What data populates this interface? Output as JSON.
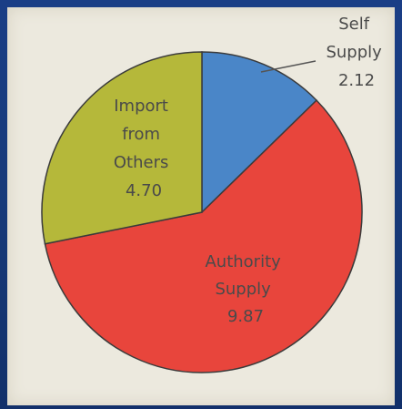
{
  "chart_data": {
    "type": "pie",
    "slices": [
      {
        "label_lines": [
          "Self",
          "Supply",
          "2.12"
        ],
        "value": 2.12,
        "color": "#4a86c8"
      },
      {
        "label_lines": [
          "Authority",
          "Supply",
          "9.87"
        ],
        "value": 9.87,
        "color": "#e8453c"
      },
      {
        "label_lines": [
          "Import",
          "from",
          "Others",
          "4.70"
        ],
        "value": 4.7,
        "color": "#b5b83a"
      }
    ]
  }
}
